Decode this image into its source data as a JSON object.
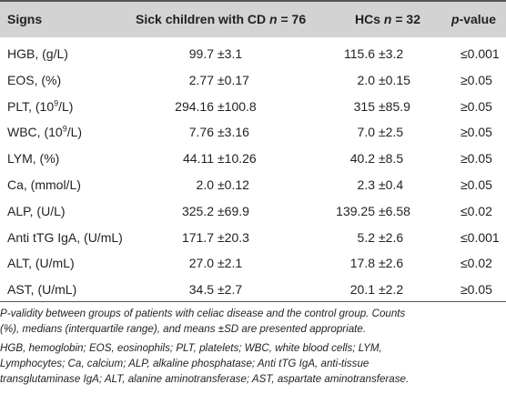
{
  "table": {
    "header": {
      "signs": "Signs",
      "cd_prefix": "Sick children with CD ",
      "cd_n": "n",
      "cd_val": " = 76",
      "hc_prefix": "HCs ",
      "hc_n": "n",
      "hc_val": " = 32",
      "p_italic": "p",
      "p_rest": "-value"
    },
    "rows": [
      {
        "sign": "HGB, (g/L)",
        "cd_mean": "99.7",
        "cd_sd": "±3.1",
        "hc_mean": "115.6",
        "hc_sd": "±3.2",
        "p": "≤0.001"
      },
      {
        "sign": "EOS, (%)",
        "cd_mean": "2.77",
        "cd_sd": "±0.17",
        "hc_mean": "2.0",
        "hc_sd": "±0.15",
        "p": "≥0.05"
      },
      {
        "sign_pre": "PLT, (10",
        "sign_sup": "9",
        "sign_post": "/L)",
        "cd_mean": "294.16",
        "cd_sd": "±100.8",
        "hc_mean": "315",
        "hc_sd": "±85.9",
        "p": "≥0.05"
      },
      {
        "sign_pre": "WBC, (10",
        "sign_sup": "9",
        "sign_post": "/L)",
        "cd_mean": "7.76",
        "cd_sd": "±3.16",
        "hc_mean": "7.0",
        "hc_sd": "±2.5",
        "p": "≥0.05"
      },
      {
        "sign": "LYM, (%)",
        "cd_mean": "44.11",
        "cd_sd": "±10.26",
        "hc_mean": "40.2",
        "hc_sd": "±8.5",
        "p": "≥0.05"
      },
      {
        "sign": "Ca, (mmol/L)",
        "cd_mean": "2.0",
        "cd_sd": "±0.12",
        "hc_mean": "2.3",
        "hc_sd": "±0.4",
        "p": "≥0.05"
      },
      {
        "sign": "ALP, (U/L)",
        "cd_mean": "325.2",
        "cd_sd": "±69.9",
        "hc_mean": "139.25",
        "hc_sd": "±6.58",
        "p": "≤0.02"
      },
      {
        "sign": "Anti tTG IgA, (U/mL)",
        "cd_mean": "171.7",
        "cd_sd": "±20.3",
        "hc_mean": "5.2",
        "hc_sd": "±2.6",
        "p": "≤0.001"
      },
      {
        "sign": "ALT, (U/mL)",
        "cd_mean": "27.0",
        "cd_sd": "±2.1",
        "hc_mean": "17.8",
        "hc_sd": "±2.6",
        "p": "≤0.02"
      },
      {
        "sign": "AST, (U/mL)",
        "cd_mean": "34.5",
        "cd_sd": "±2.7",
        "hc_mean": "20.1",
        "hc_sd": "±2.2",
        "p": "≥0.05"
      }
    ]
  },
  "notes": {
    "line1": "P-validity between groups of patients with celiac disease and the control group. Counts",
    "line2": "(%), medians (interquartile range), and means ±SD are presented appropriate.",
    "line3": "HGB, hemoglobin; EOS, eosinophils; PLT, platelets; WBC, white blood cells; LYM,",
    "line4": "Lymphocytes; Ca, calcium; ALP, alkaline phosphatase; Anti tTG IgA, anti-tissue",
    "line5": "transglutaminase IgA; ALT, alanine aminotransferase; AST, aspartate aminotransferase."
  }
}
